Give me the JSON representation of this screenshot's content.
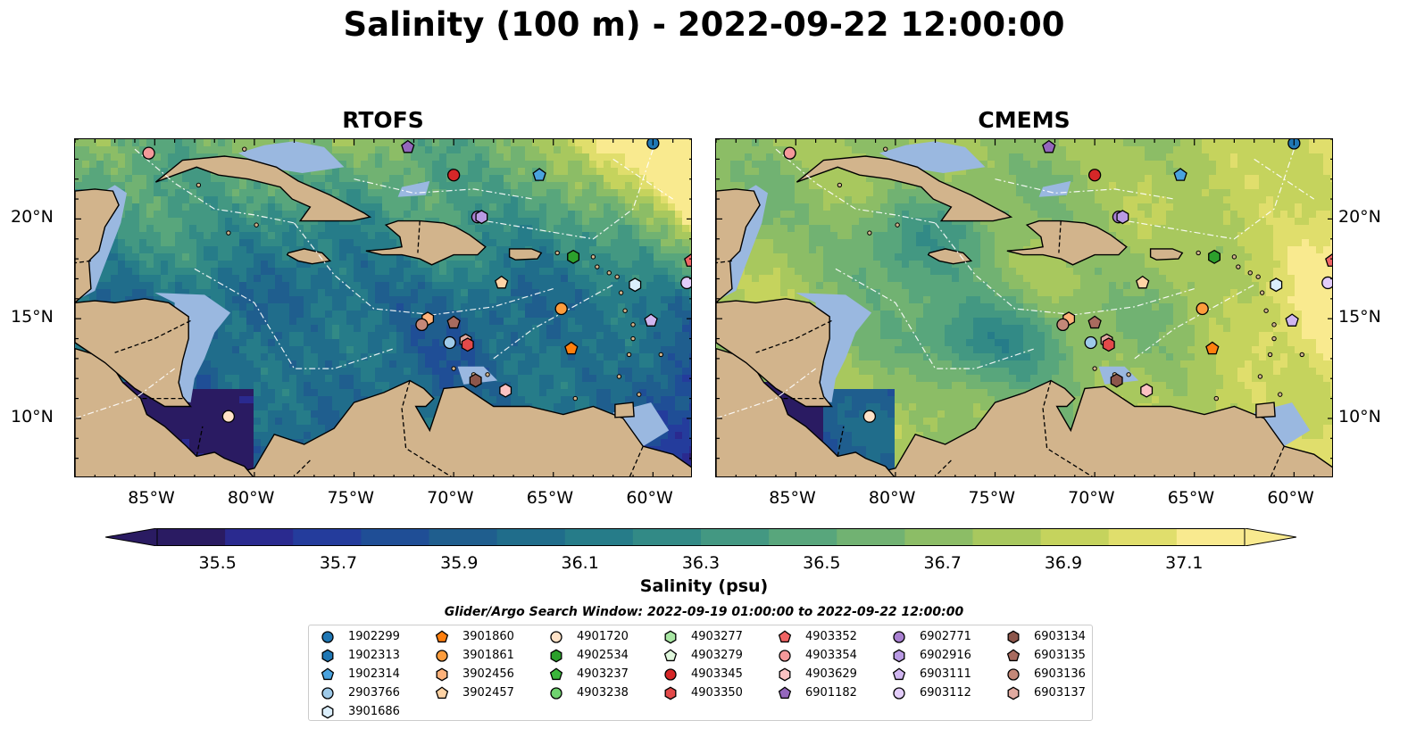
{
  "title": "Salinity (100 m) - 2022-09-22 12:00:00",
  "panels": [
    {
      "id": "rtofs",
      "label": "RTOFS"
    },
    {
      "id": "cmems",
      "label": "CMEMS"
    }
  ],
  "map_extent": {
    "lon": [
      -89,
      -58
    ],
    "lat": [
      7,
      24
    ]
  },
  "lon_ticks": [
    "85°W",
    "80°W",
    "75°W",
    "70°W",
    "65°W",
    "60°W"
  ],
  "lat_ticks": [
    "20°N",
    "15°N",
    "10°N"
  ],
  "colors": {
    "land": "#d2b48c",
    "shallow_water": "#9ab8e0",
    "colormap": [
      "#2a1b62",
      "#2a2a8f",
      "#243c9c",
      "#1f4e96",
      "#1f5e8e",
      "#206d8b",
      "#267c89",
      "#328a86",
      "#439882",
      "#58a67c",
      "#71b272",
      "#8cbd66",
      "#a8c85e",
      "#c5d35d",
      "#e0de6c",
      "#f9ea8f"
    ]
  },
  "colorbar": {
    "min": 35.4,
    "max": 37.2,
    "ticks": [
      "35.5",
      "35.7",
      "35.9",
      "36.1",
      "36.3",
      "36.5",
      "36.7",
      "36.9",
      "37.1"
    ],
    "label": "Salinity (psu)",
    "extend": "both"
  },
  "legend": {
    "title": "Glider/Argo Search Window: 2022-09-19 01:00:00 to 2022-09-22 12:00:00",
    "items": [
      {
        "id": "1902299",
        "marker": "circle",
        "color": "#1f77b4"
      },
      {
        "id": "1902313",
        "marker": "hexagon",
        "color": "#1f77b4"
      },
      {
        "id": "1902314",
        "marker": "pentagon",
        "color": "#4aa3df"
      },
      {
        "id": "2903766",
        "marker": "circle",
        "color": "#9ecae9"
      },
      {
        "id": "3901686",
        "marker": "hexagon",
        "color": "#dbeefb"
      },
      {
        "id": "3901860",
        "marker": "pentagon",
        "color": "#ff7f0e"
      },
      {
        "id": "3901861",
        "marker": "circle",
        "color": "#fd9c3c"
      },
      {
        "id": "3902456",
        "marker": "hexagon",
        "color": "#ffb27a"
      },
      {
        "id": "3902457",
        "marker": "pentagon",
        "color": "#ffd3a5"
      },
      {
        "id": "4901720",
        "marker": "circle",
        "color": "#ffe2c7"
      },
      {
        "id": "4902534",
        "marker": "hexagon",
        "color": "#2ca02c"
      },
      {
        "id": "4903237",
        "marker": "pentagon",
        "color": "#3bb53b"
      },
      {
        "id": "4903238",
        "marker": "circle",
        "color": "#6fd36f"
      },
      {
        "id": "4903277",
        "marker": "hexagon",
        "color": "#a8e6a3"
      },
      {
        "id": "4903279",
        "marker": "pentagon",
        "color": "#dff7dc"
      },
      {
        "id": "4903345",
        "marker": "circle",
        "color": "#d62728"
      },
      {
        "id": "4903350",
        "marker": "hexagon",
        "color": "#e34a4a"
      },
      {
        "id": "4903352",
        "marker": "pentagon",
        "color": "#f06464"
      },
      {
        "id": "4903354",
        "marker": "circle",
        "color": "#f4999a"
      },
      {
        "id": "4903629",
        "marker": "hexagon",
        "color": "#fbc2c2"
      },
      {
        "id": "6901182",
        "marker": "pentagon",
        "color": "#9467bd"
      },
      {
        "id": "6902771",
        "marker": "circle",
        "color": "#a980d1"
      },
      {
        "id": "6902916",
        "marker": "hexagon",
        "color": "#b99ae3"
      },
      {
        "id": "6903111",
        "marker": "pentagon",
        "color": "#d0b6f0"
      },
      {
        "id": "6903112",
        "marker": "circle",
        "color": "#e3cdfa"
      },
      {
        "id": "6903134",
        "marker": "hexagon",
        "color": "#8c564b"
      },
      {
        "id": "6903135",
        "marker": "pentagon",
        "color": "#a86b5f"
      },
      {
        "id": "6903136",
        "marker": "circle",
        "color": "#c48878"
      },
      {
        "id": "6903137",
        "marker": "hexagon",
        "color": "#e0aaa0"
      }
    ]
  },
  "floats": [
    {
      "id": "4903354",
      "lon": -85.3,
      "lat": 23.3
    },
    {
      "id": "6901182",
      "lon": -72.3,
      "lat": 23.6
    },
    {
      "id": "1902299",
      "lon": -60.0,
      "lat": 23.8
    },
    {
      "id": "4903345",
      "lon": -70.0,
      "lat": 22.2
    },
    {
      "id": "1902314",
      "lon": -65.7,
      "lat": 22.2
    },
    {
      "id": "6902771",
      "lon": -68.8,
      "lat": 20.1
    },
    {
      "id": "6902916",
      "lon": -68.6,
      "lat": 20.1
    },
    {
      "id": "4902534",
      "lon": -64.0,
      "lat": 18.1
    },
    {
      "id": "4903352",
      "lon": -58.1,
      "lat": 17.9
    },
    {
      "id": "3902457",
      "lon": -67.6,
      "lat": 16.8
    },
    {
      "id": "3901686",
      "lon": -60.9,
      "lat": 16.7
    },
    {
      "id": "6903112",
      "lon": -58.3,
      "lat": 16.8
    },
    {
      "id": "3901861",
      "lon": -64.6,
      "lat": 15.5
    },
    {
      "id": "6903111",
      "lon": -60.1,
      "lat": 14.9
    },
    {
      "id": "3902456",
      "lon": -71.3,
      "lat": 15.0
    },
    {
      "id": "6903136",
      "lon": -71.6,
      "lat": 14.7
    },
    {
      "id": "6903135",
      "lon": -70.0,
      "lat": 14.8
    },
    {
      "id": "2903766",
      "lon": -70.2,
      "lat": 13.8
    },
    {
      "id": "6903137",
      "lon": -69.4,
      "lat": 13.9
    },
    {
      "id": "4903350",
      "lon": -69.3,
      "lat": 13.7
    },
    {
      "id": "3901860",
      "lon": -64.1,
      "lat": 13.5
    },
    {
      "id": "6903134",
      "lon": -68.9,
      "lat": 11.9
    },
    {
      "id": "4903629",
      "lon": -67.4,
      "lat": 11.4
    },
    {
      "id": "4901720",
      "lon": -81.3,
      "lat": 10.1
    }
  ]
}
